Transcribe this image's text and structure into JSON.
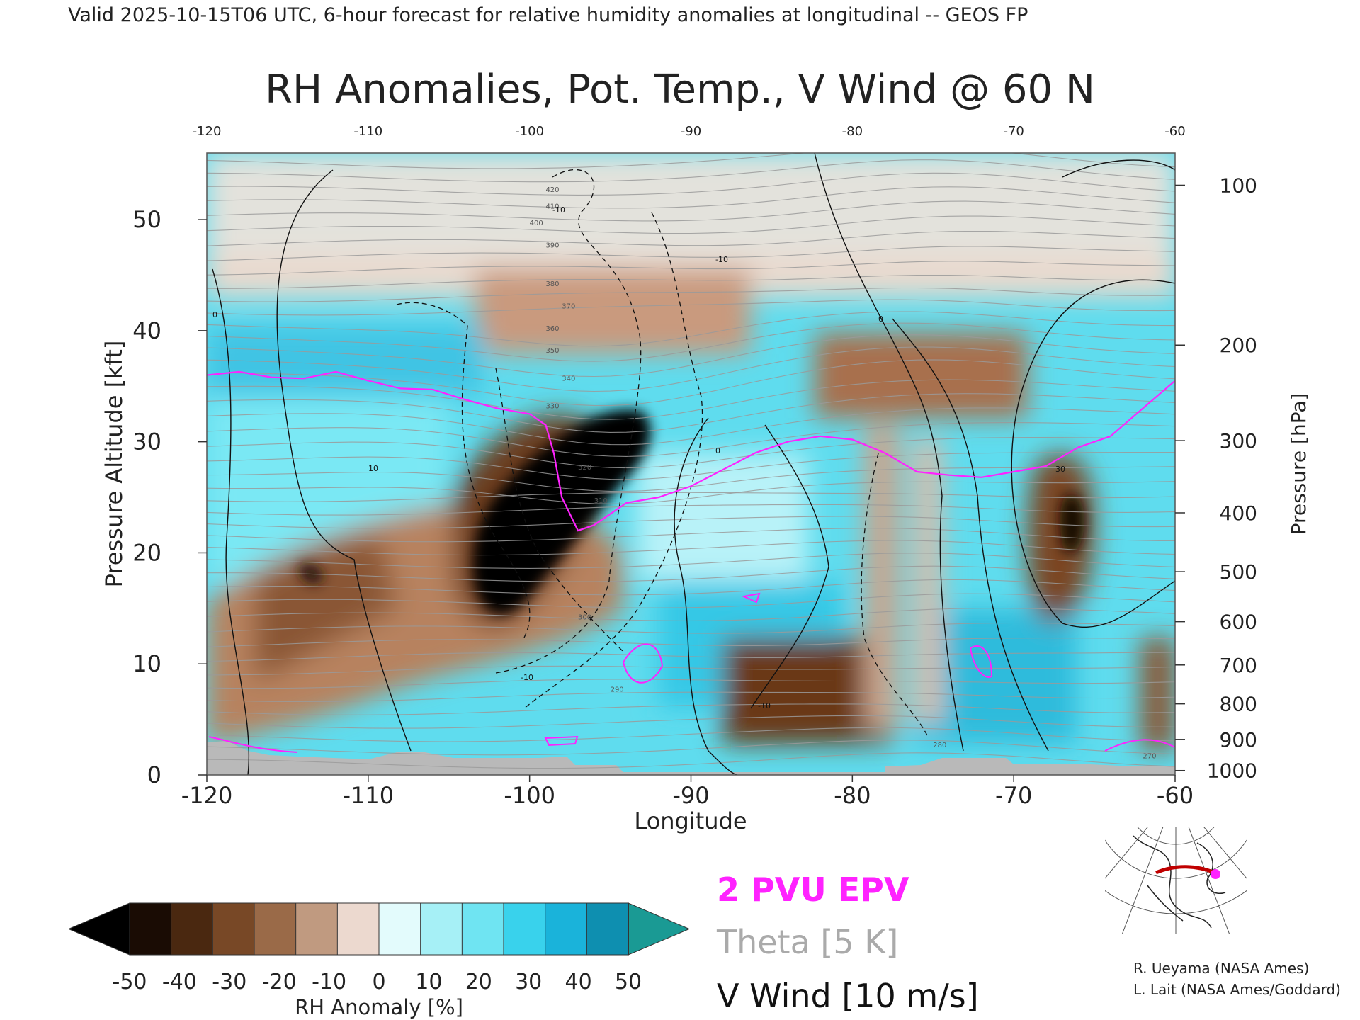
{
  "header": {
    "valid_line": "Valid 2025-10-15T06 UTC, 6-hour forecast for relative humidity anomalies at longitudinal -- GEOS FP"
  },
  "chart_data": {
    "type": "heatmap",
    "title": "RH Anomalies, Pot. Temp., V Wind @ 60 N",
    "xlabel": "Longitude",
    "ylabel_left": "Pressure Altitude [kft]",
    "ylabel_right": "Pressure [hPa]",
    "xlim": [
      -120,
      -60
    ],
    "ylim": [
      0,
      56
    ],
    "x_ticks_bottom": [
      -120,
      -110,
      -100,
      -90,
      -80,
      -70,
      -60
    ],
    "x_ticks_top": [
      -120,
      -110,
      -100,
      -90,
      -80,
      -70,
      -60
    ],
    "y_ticks_left": [
      0,
      10,
      20,
      30,
      40,
      50
    ],
    "pressure_ticks": [
      {
        "label": "100",
        "kft": 53.1
      },
      {
        "label": "200",
        "kft": 38.7
      },
      {
        "label": "300",
        "kft": 30.1
      },
      {
        "label": "400",
        "kft": 23.6
      },
      {
        "label": "500",
        "kft": 18.3
      },
      {
        "label": "600",
        "kft": 13.8
      },
      {
        "label": "700",
        "kft": 9.9
      },
      {
        "label": "800",
        "kft": 6.4
      },
      {
        "label": "900",
        "kft": 3.2
      },
      {
        "label": "1000",
        "kft": 0.4
      }
    ],
    "colorbar": {
      "label": "RH Anomaly [%]",
      "ticks": [
        "-50",
        "-40",
        "-30",
        "-20",
        "-10",
        "0",
        "10",
        "20",
        "30",
        "40",
        "50"
      ],
      "colors": [
        "#1a0c04",
        "#4a2810",
        "#784826",
        "#9a6a48",
        "#c09a80",
        "#ecd9cf",
        "#e3fbfc",
        "#a6f0f6",
        "#6fe4f2",
        "#39d2ec",
        "#1ab3da",
        "#0e8fb0"
      ],
      "under_color": "#000000",
      "over_color": "#1a9a94"
    },
    "legend": {
      "epv": {
        "label": "2 PVU EPV",
        "color": "#ff22ff"
      },
      "theta": {
        "label": "Theta [5 K]",
        "color": "#aaaaaa"
      },
      "vwind": {
        "label": "V Wind [10 m/s]",
        "color": "#111111"
      }
    },
    "theta_labels": [
      "420",
      "410",
      "400",
      "390",
      "380",
      "370",
      "360",
      "350",
      "340",
      "330",
      "320",
      "310",
      "300",
      "290",
      "280",
      "270"
    ],
    "vwind_labels": [
      "0",
      "10",
      "-10",
      "30"
    ],
    "epv_2pvu_kft": [
      [
        -120,
        36.0
      ],
      [
        -118,
        36.3
      ],
      [
        -116,
        35.8
      ],
      [
        -114,
        35.7
      ],
      [
        -112,
        36.3
      ],
      [
        -110,
        35.5
      ],
      [
        -108,
        34.8
      ],
      [
        -106,
        34.7
      ],
      [
        -104,
        33.8
      ],
      [
        -102,
        33.0
      ],
      [
        -100,
        32.5
      ],
      [
        -99,
        31.5
      ],
      [
        -98.5,
        29.0
      ],
      [
        -98,
        25.0
      ],
      [
        -97,
        22.0
      ],
      [
        -96,
        22.5
      ],
      [
        -94,
        24.5
      ],
      [
        -92,
        25.0
      ],
      [
        -90,
        26.0
      ],
      [
        -88,
        27.5
      ],
      [
        -86,
        29.0
      ],
      [
        -84,
        30.0
      ],
      [
        -82,
        30.5
      ],
      [
        -80,
        30.2
      ],
      [
        -78,
        29.0
      ],
      [
        -76,
        27.3
      ],
      [
        -74,
        27.0
      ],
      [
        -72,
        26.8
      ],
      [
        -70,
        27.3
      ],
      [
        -68,
        27.8
      ],
      [
        -66,
        29.5
      ],
      [
        -64,
        30.5
      ],
      [
        -62,
        33.0
      ],
      [
        -60,
        35.5
      ]
    ],
    "credits": [
      "R. Ueyama (NASA Ames)",
      "L. Lait (NASA Ames/Goddard)"
    ],
    "map_inset": {
      "latitude_line": "60 N",
      "marker_color": "#ff22ff",
      "line_color": "#c00000"
    }
  }
}
